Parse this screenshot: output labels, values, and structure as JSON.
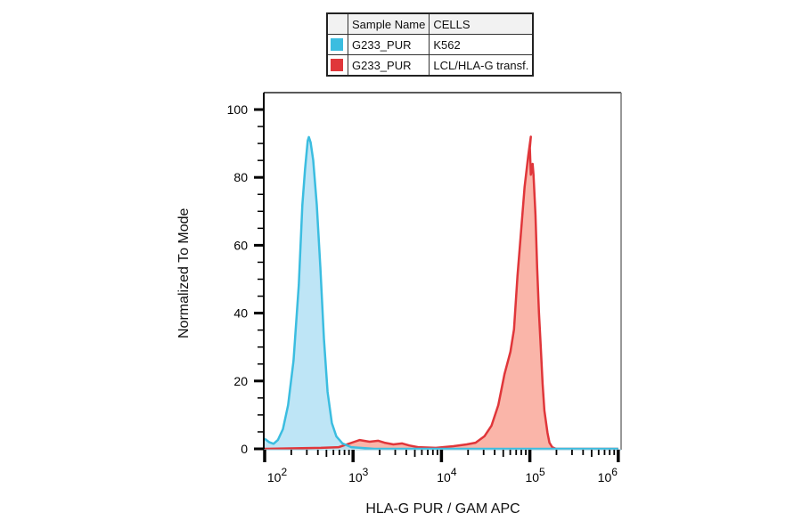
{
  "legend": {
    "headers": [
      "",
      "Sample Name",
      "CELLS"
    ],
    "rows": [
      {
        "color": "#3bbde0",
        "sample": "G233_PUR",
        "cells": "K562"
      },
      {
        "color": "#e0363a",
        "sample": "G233_PUR",
        "cells": "LCL/HLA-G transf."
      }
    ]
  },
  "axes": {
    "ylabel": "Normalized To Mode",
    "xlabel": "HLA-G PUR / GAM APC",
    "yticks": [
      "0",
      "20",
      "40",
      "60",
      "80",
      "100"
    ],
    "xticks": [
      {
        "base": "10",
        "exp": "2"
      },
      {
        "base": "10",
        "exp": "3"
      },
      {
        "base": "10",
        "exp": "4"
      },
      {
        "base": "10",
        "exp": "5"
      },
      {
        "base": "10",
        "exp": "6"
      }
    ]
  },
  "colors": {
    "blue_line": "#3bbde0",
    "blue_fill": "#b3e0f5",
    "red_line": "#e0363a",
    "red_fill": "#f9a89a"
  },
  "chart_data": {
    "type": "area",
    "title": "",
    "xlabel": "HLA-G PUR / GAM APC",
    "ylabel": "Normalized To Mode",
    "xscale": "log",
    "xlim": [
      100,
      1000000
    ],
    "ylim": [
      0,
      105
    ],
    "x_tick_labels": [
      "10^2",
      "10^3",
      "10^4",
      "10^5",
      "10^6"
    ],
    "y_tick_labels": [
      "0",
      "20",
      "40",
      "60",
      "80",
      "100"
    ],
    "legend_position": "top (table above plot)",
    "grid": false,
    "series": [
      {
        "name": "G233_PUR / K562",
        "color": "#3bbde0",
        "x": [
          100,
          112,
          126,
          141,
          161,
          184,
          212,
          243,
          267,
          286,
          307,
          316,
          331,
          354,
          389,
          427,
          468,
          515,
          575,
          647,
          759,
          955,
          1738,
          1000000
        ],
        "y": [
          3,
          2,
          1.5,
          2.6,
          5.8,
          12.9,
          26,
          48.3,
          71.9,
          82.4,
          90.8,
          91.9,
          90.3,
          85,
          71.9,
          53.5,
          32.5,
          16.8,
          7.6,
          3.7,
          1.6,
          0.5,
          0,
          0
        ]
      },
      {
        "name": "G233_PUR / LCL/HLA-G transf.",
        "color": "#e0363a",
        "x": [
          100,
          433,
          689,
          1040,
          1190,
          1535,
          1928,
          2269,
          2857,
          3597,
          4315,
          5436,
          8633,
          13680,
          19300,
          24300,
          30600,
          36800,
          43960,
          51600,
          60300,
          66100,
          72500,
          79500,
          87300,
          95900,
          102700,
          100000,
          102500,
          104900,
          107500,
          110000,
          115700,
          121000,
          126800,
          132900,
          139300,
          145900,
          158500,
          166600,
          179100,
          197000,
          1000000
        ],
        "y": [
          0,
          0.3,
          0.5,
          2.1,
          2.6,
          2.1,
          2.4,
          1.8,
          1.3,
          1.6,
          1.0,
          0.5,
          0.3,
          0.8,
          1.3,
          1.8,
          3.7,
          6.8,
          12.9,
          22.0,
          28.6,
          35.2,
          50.9,
          64.0,
          77.2,
          86.4,
          92.0,
          88.7,
          80.8,
          82.2,
          84.0,
          80.8,
          69.0,
          53.3,
          40.2,
          29.7,
          19.2,
          11.3,
          4.7,
          1.8,
          0.5,
          0,
          0
        ]
      }
    ]
  }
}
